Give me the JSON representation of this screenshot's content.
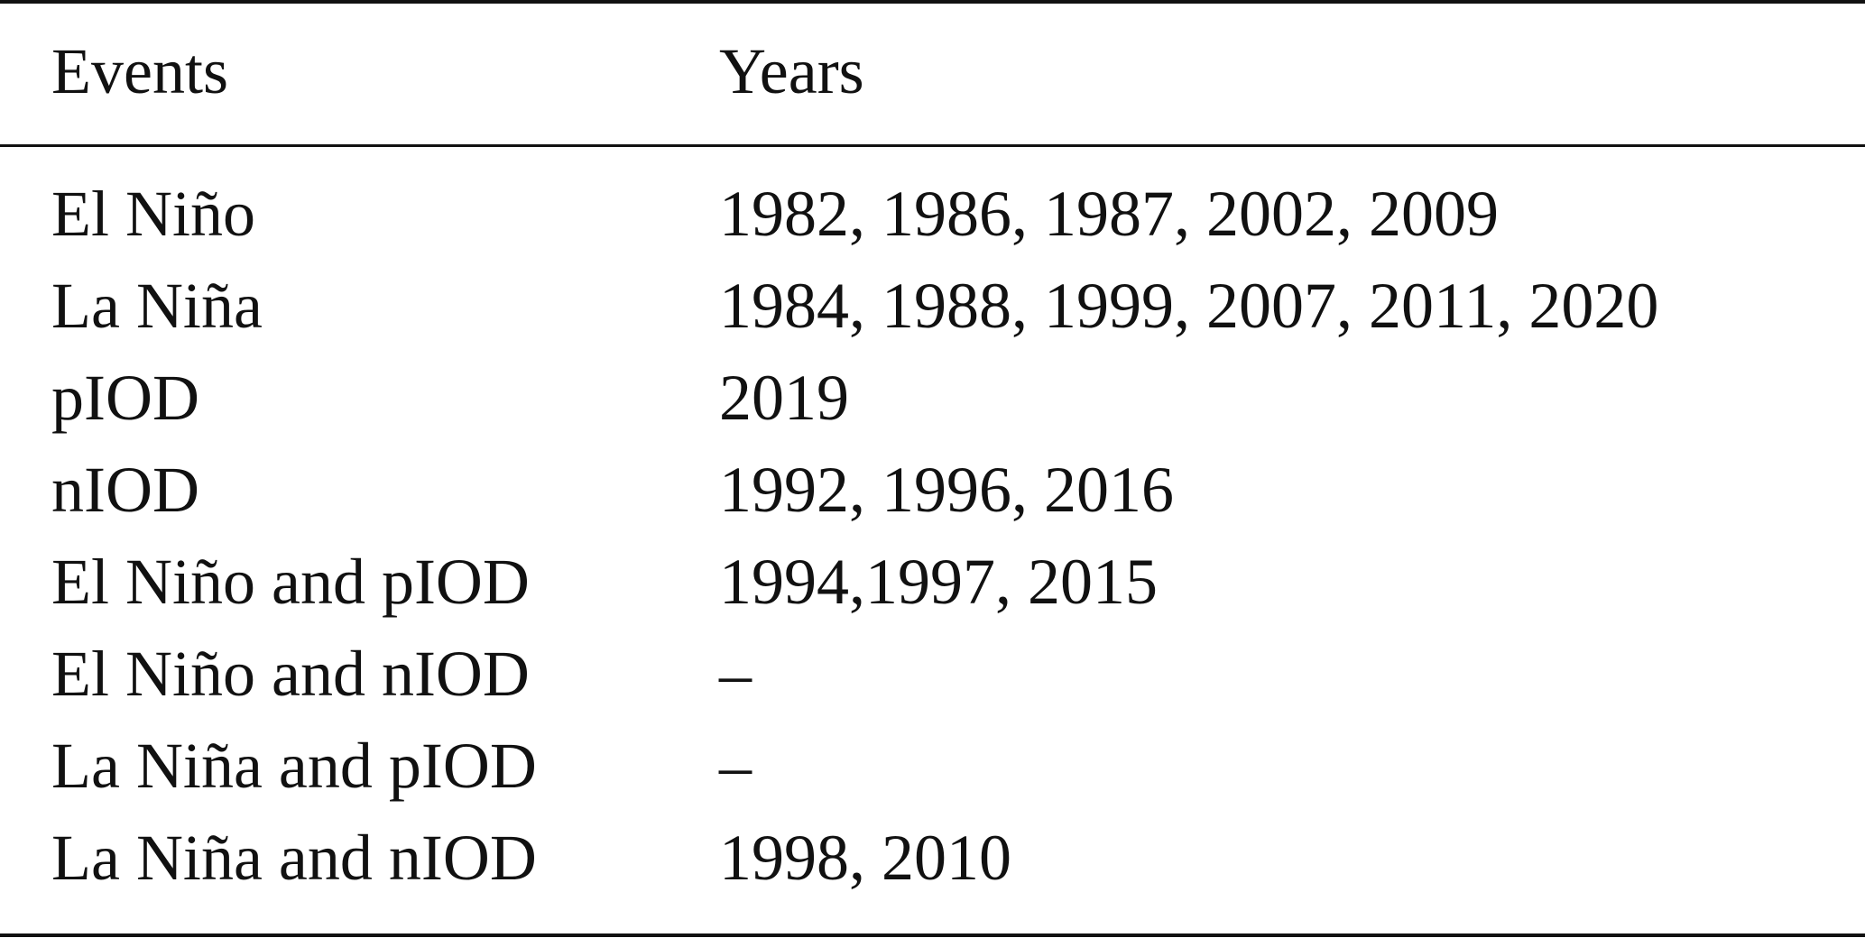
{
  "table": {
    "header": [
      "Events",
      "Years"
    ],
    "rows": [
      [
        "El Niño",
        "1982, 1986, 1987, 2002, 2009"
      ],
      [
        "La Niña",
        "1984, 1988, 1999, 2007, 2011, 2020"
      ],
      [
        "pIOD",
        "2019"
      ],
      [
        "nIOD",
        "1992, 1996, 2016"
      ],
      [
        "El Niño and pIOD",
        "1994,1997, 2015"
      ],
      [
        "El Niño and nIOD",
        "–"
      ],
      [
        "La Niña and pIOD",
        "–"
      ],
      [
        "La Niña and nIOD",
        "1998, 2010"
      ]
    ]
  }
}
